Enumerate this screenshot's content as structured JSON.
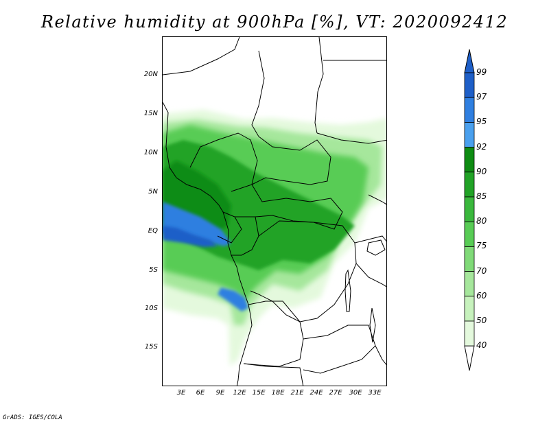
{
  "title": "Relative humidity at 900hPa [%], VT: 2020092412",
  "credit": "GrADS: IGES/COLA",
  "map": {
    "lat_labels": [
      "20N",
      "15N",
      "10N",
      "5N",
      "EQ",
      "5S",
      "10S",
      "15S"
    ],
    "lon_labels": [
      "3E",
      "6E",
      "9E",
      "12E",
      "15E",
      "18E",
      "21E",
      "24E",
      "27E",
      "30E",
      "33E"
    ]
  },
  "colorbar": {
    "labels": [
      "99",
      "97",
      "95",
      "92",
      "90",
      "85",
      "80",
      "75",
      "70",
      "60",
      "50",
      "40"
    ],
    "colors": [
      "#1e5fc8",
      "#2f7fe0",
      "#4aa0ee",
      "#0e8c12",
      "#21a326",
      "#3ab83c",
      "#58cc55",
      "#80da78",
      "#a6e79c",
      "#c7f2bd",
      "#e4f9dd",
      "#ffffff"
    ]
  }
}
